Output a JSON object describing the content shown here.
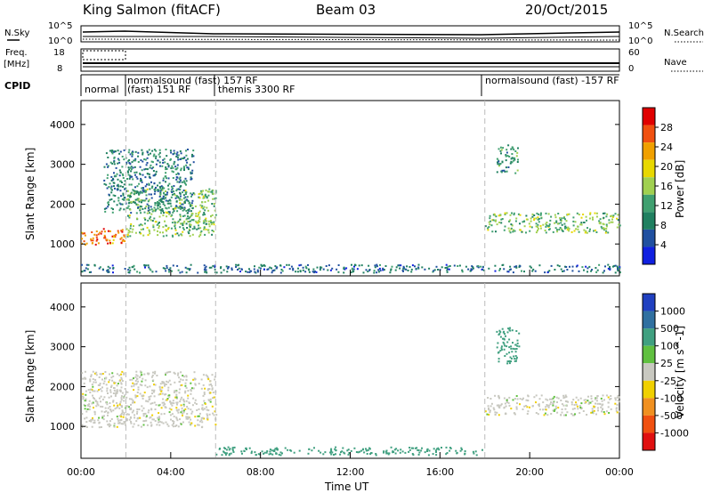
{
  "header": {
    "title": "King Salmon (fitACF)",
    "beam": "Beam 03",
    "date": "20/Oct/2015"
  },
  "strip_labels": {
    "nsky": "N.Sky",
    "nsky_ticks": [
      "10^5",
      "10^0"
    ],
    "nsearch": "N.Search",
    "nsearch_ticks": [
      "10^5",
      "10^0"
    ],
    "freq": "Freq.",
    "freq_unit": "[MHz]",
    "freq_ticks": [
      "18",
      "8"
    ],
    "nave": "Nave",
    "nave_ticks": [
      "60",
      "0"
    ],
    "cpid": "CPID"
  },
  "cpid_segments": [
    {
      "label": "normal",
      "start": "00:00"
    },
    {
      "label": "normalsound (fast) 157 RF",
      "start": "02:00"
    },
    {
      "label": "(fast) 151 RF",
      "start": "02:00"
    },
    {
      "label": "themis 3300 RF",
      "start": "06:00"
    },
    {
      "label": "normalsound (fast) -157 RF",
      "start": "18:00"
    }
  ],
  "panels": {
    "ylabel": "Slant Range [km]",
    "xlabel": "Time UT",
    "y_ticks": [
      "1000",
      "2000",
      "3000",
      "4000"
    ],
    "x_ticks": [
      "00:00",
      "04:00",
      "08:00",
      "12:00",
      "16:00",
      "20:00",
      "00:00"
    ]
  },
  "power_bar": {
    "label": "Power [dB]",
    "ticks": [
      "28",
      "24",
      "20",
      "16",
      "12",
      "8",
      "4"
    ],
    "colors": [
      "#e00000",
      "#f05010",
      "#f0a000",
      "#e8d800",
      "#a0d050",
      "#40a070",
      "#208060",
      "#2050a0",
      "#1020e0"
    ]
  },
  "velocity_bar": {
    "label": "Velocity [m s^-1]",
    "ticks": [
      "1000",
      "500",
      "100",
      "25",
      "-25",
      "-100",
      "-500",
      "-1000"
    ],
    "colors": [
      "#2040c0",
      "#3070a0",
      "#40a080",
      "#60c040",
      "#c8c8c0",
      "#f0d000",
      "#f09020",
      "#f05010",
      "#e01010"
    ]
  },
  "chart_data": [
    {
      "type": "heatmap",
      "title": "",
      "xlabel": "Time UT",
      "ylabel": "Slant Range [km]",
      "xlim": [
        "00:00",
        "24:00"
      ],
      "ylim": [
        200,
        4600
      ],
      "quantity": "Power [dB]",
      "colorbar_range": [
        0,
        32
      ],
      "echo_regions": [
        {
          "time": [
            "00:00",
            "02:00"
          ],
          "range_km": [
            1000,
            1400
          ],
          "power_db": 26
        },
        {
          "time": [
            "02:00",
            "06:00"
          ],
          "range_km": [
            1200,
            2400
          ],
          "power_db": 14
        },
        {
          "time": [
            "01:00",
            "05:00"
          ],
          "range_km": [
            1800,
            3400
          ],
          "power_db": 8
        },
        {
          "time": [
            "18:00",
            "24:00"
          ],
          "range_km": [
            1300,
            1800
          ],
          "power_db": 14
        },
        {
          "time": [
            "18:30",
            "19:30"
          ],
          "range_km": [
            2800,
            3500
          ],
          "power_db": 10
        },
        {
          "time": [
            "00:00",
            "24:00"
          ],
          "range_km": [
            300,
            500
          ],
          "power_db": 6
        }
      ]
    },
    {
      "type": "heatmap",
      "title": "",
      "xlabel": "Time UT",
      "ylabel": "Slant Range [km]",
      "xlim": [
        "00:00",
        "24:00"
      ],
      "ylim": [
        200,
        4600
      ],
      "quantity": "Velocity [m s^-1]",
      "colorbar_range": [
        -1000,
        1000
      ],
      "echo_regions": [
        {
          "time": [
            "00:00",
            "06:00"
          ],
          "range_km": [
            1000,
            2400
          ],
          "velocity": 0
        },
        {
          "time": [
            "18:00",
            "24:00"
          ],
          "range_km": [
            1300,
            1800
          ],
          "velocity": 0
        },
        {
          "time": [
            "18:30",
            "19:30"
          ],
          "range_km": [
            2600,
            3500
          ],
          "velocity": 200
        },
        {
          "time": [
            "06:00",
            "18:00"
          ],
          "range_km": [
            300,
            500
          ],
          "velocity": 100
        }
      ]
    }
  ]
}
